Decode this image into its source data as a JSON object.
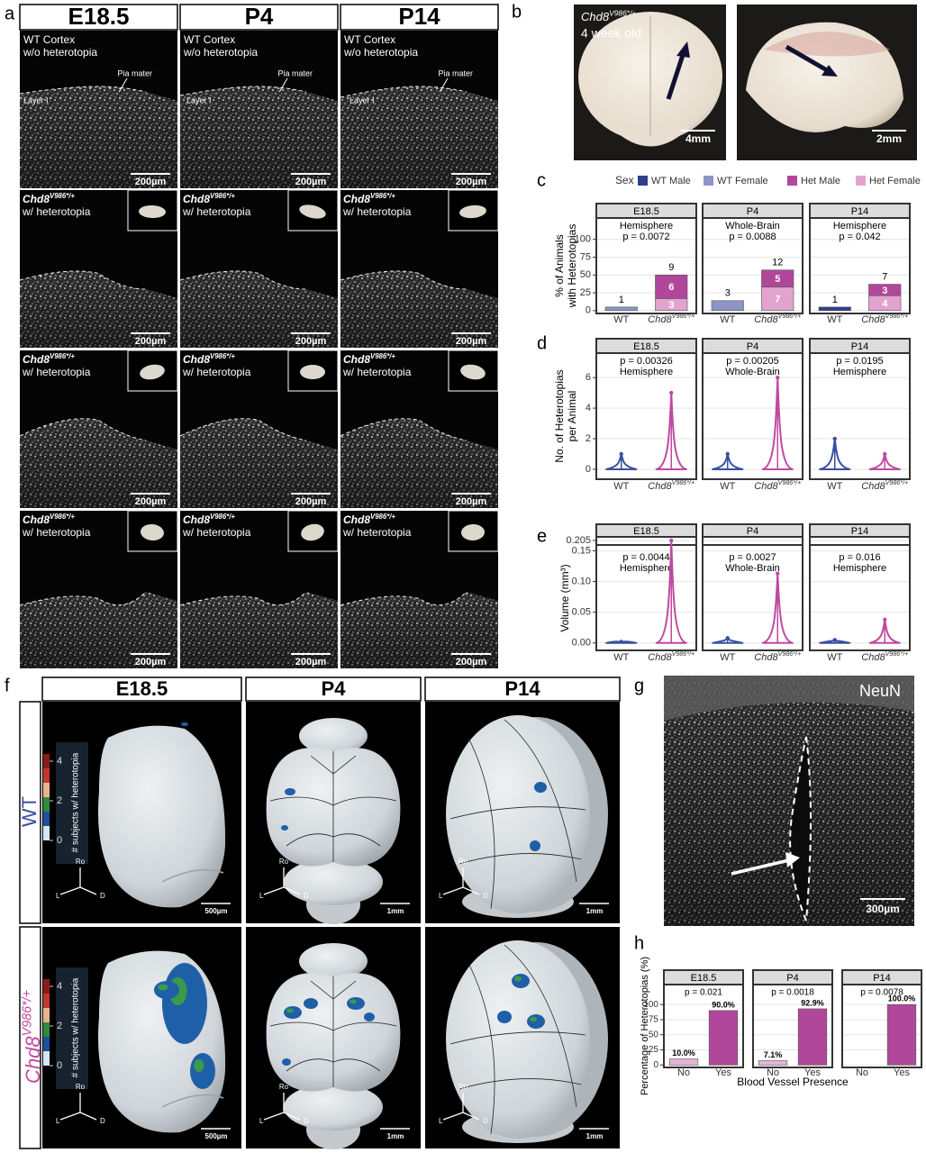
{
  "panel_labels": [
    "a",
    "b",
    "c",
    "d",
    "e",
    "f",
    "g",
    "h"
  ],
  "panel_a": {
    "columns": [
      "E18.5",
      "P4",
      "P14"
    ],
    "wt_label": [
      "WT Cortex",
      "w/o heterotopia"
    ],
    "gene": "Chd8",
    "allele": "V986*/+",
    "het_label": "w/ heterotopia",
    "pia": "Pia mater",
    "layer": "Layer I",
    "scale": "200µm"
  },
  "panel_b": {
    "gene": "Chd8",
    "allele": "V986*/+",
    "age": "4 week old",
    "scales": [
      "4mm",
      "2mm"
    ]
  },
  "chart_data": [
    {
      "type": "bar",
      "stacked": true,
      "legend_title": "Sex",
      "series": [
        {
          "name": "WT Male",
          "color": "#2f3f8f"
        },
        {
          "name": "WT Female",
          "color": "#8c95c6"
        },
        {
          "name": "Het Male",
          "color": "#b0479a"
        },
        {
          "name": "Het Female",
          "color": "#e2a3cf"
        }
      ],
      "ylabel": [
        "% of Animals",
        "with Heterotopias"
      ],
      "categories": [
        "WT",
        "Chd8"
      ],
      "allele": "V986*/+",
      "ylim": [
        -4,
        130
      ],
      "yticks": [
        0,
        25,
        50,
        75,
        100
      ],
      "grid": true,
      "facets": [
        {
          "title": "E18.5",
          "lines": [
            "Hemisphere",
            "p = 0.0072"
          ],
          "totals": [
            1,
            9
          ],
          "stacks": [
            [
              null,
              null
            ],
            [
              5,
              null
            ],
            [
              null,
              33
            ],
            [
              null,
              17
            ]
          ],
          "counts": [
            [
              null,
              null
            ],
            [
              null,
              null
            ],
            [
              null,
              6
            ],
            [
              null,
              3
            ]
          ]
        },
        {
          "title": "P4",
          "lines": [
            "Whole-Brain",
            "p = 0.0088"
          ],
          "totals": [
            3,
            12
          ],
          "stacks": [
            [
              null,
              null
            ],
            [
              14,
              null
            ],
            [
              null,
              24
            ],
            [
              null,
              33
            ]
          ],
          "counts": [
            [
              null,
              null
            ],
            [
              null,
              null
            ],
            [
              null,
              5
            ],
            [
              null,
              7
            ]
          ]
        },
        {
          "title": "P14",
          "lines": [
            "Hemisphere",
            "p = 0.042"
          ],
          "totals": [
            1,
            7
          ],
          "stacks": [
            [
              5,
              null
            ],
            [
              null,
              null
            ],
            [
              null,
              16
            ],
            [
              null,
              21
            ]
          ],
          "counts": [
            [
              null,
              null
            ],
            [
              null,
              null
            ],
            [
              null,
              3
            ],
            [
              null,
              4
            ]
          ]
        }
      ]
    },
    {
      "type": "violin",
      "ylabel": [
        "No. of Heterotopias",
        "per Animal"
      ],
      "categories": [
        "WT",
        "Chd8"
      ],
      "allele": "V986*/+",
      "colors": [
        "#3b4fa0",
        "#bf4aa0"
      ],
      "ylim": [
        -0.65,
        7.6
      ],
      "yticks": [
        0,
        2,
        4,
        6
      ],
      "grid": true,
      "facets": [
        {
          "title": "E18.5",
          "lines": [
            "p = 0.00326",
            "Hemisphere"
          ],
          "max": [
            1,
            5
          ]
        },
        {
          "title": "P4",
          "lines": [
            "p = 0.00205",
            "Whole-Brain"
          ],
          "max": [
            1,
            6
          ]
        },
        {
          "title": "P14",
          "lines": [
            "p = 0.0195",
            "Hemisphere"
          ],
          "max": [
            2,
            1
          ]
        }
      ]
    },
    {
      "type": "violin",
      "ylabel": [
        "Volume (mm³)"
      ],
      "categories": [
        "WT",
        "Chd8"
      ],
      "allele": "V986*/+",
      "colors": [
        "#3b4fa0",
        "#bf4aa0"
      ],
      "ylim": [
        -0.012,
        0.158
      ],
      "ylim_upper": [
        0.2,
        0.21
      ],
      "yticks": [
        {
          "value": 0,
          "label": "0.00"
        },
        0.05,
        {
          "value": 0.1,
          "label": "0.10"
        },
        0.15,
        0.205
      ],
      "grid": true,
      "facets": [
        {
          "title": "E18.5",
          "lines": [
            "p = 0.0044",
            "Hemisphere"
          ],
          "max": [
            0.002,
            0.205
          ]
        },
        {
          "title": "P4",
          "lines": [
            "p = 0.0027",
            "Whole-Brain"
          ],
          "max": [
            0.008,
            0.113
          ]
        },
        {
          "title": "P14",
          "lines": [
            "p = 0.016",
            "Hemisphere"
          ],
          "max": [
            0.005,
            0.038
          ]
        }
      ]
    },
    {
      "type": "bar",
      "ylabel": [
        "Percentage of Heterotopias (%)"
      ],
      "xlabel": "Blood Vessel Presence",
      "categories": [
        "No",
        "Yes"
      ],
      "colors": [
        "#e6b3d6",
        "#b0479a"
      ],
      "ylim": [
        -4,
        133
      ],
      "yticks": [
        0,
        25,
        50,
        75,
        100
      ],
      "grid": true,
      "facets": [
        {
          "title": "E18.5",
          "lines": [
            "p = 0.021"
          ],
          "values": [
            10.0,
            90.0
          ],
          "value_labels": [
            "10.0%",
            "90.0%"
          ]
        },
        {
          "title": "P4",
          "lines": [
            "p = 0.0018"
          ],
          "values": [
            7.1,
            92.9
          ],
          "value_labels": [
            "7.1%",
            "92.9%"
          ]
        },
        {
          "title": "P14",
          "lines": [
            "p = 0.0078"
          ],
          "values": [
            0,
            100.0
          ],
          "value_labels": [
            null,
            "100.0%"
          ]
        }
      ]
    }
  ],
  "panel_f": {
    "columns": [
      "E18.5",
      "P4",
      "P14"
    ],
    "wt": "WT",
    "gene": "Chd8",
    "allele": "V986*/+",
    "colorbar_title": "# subjects w/ heterotopia",
    "colorbar_ticks": [
      4,
      2,
      0
    ],
    "axes": [
      "Ro",
      "L",
      "D"
    ],
    "scales": [
      "500µm",
      "1mm",
      "1mm"
    ]
  },
  "panel_g": {
    "label": "NeuN",
    "scale": "300µm"
  }
}
